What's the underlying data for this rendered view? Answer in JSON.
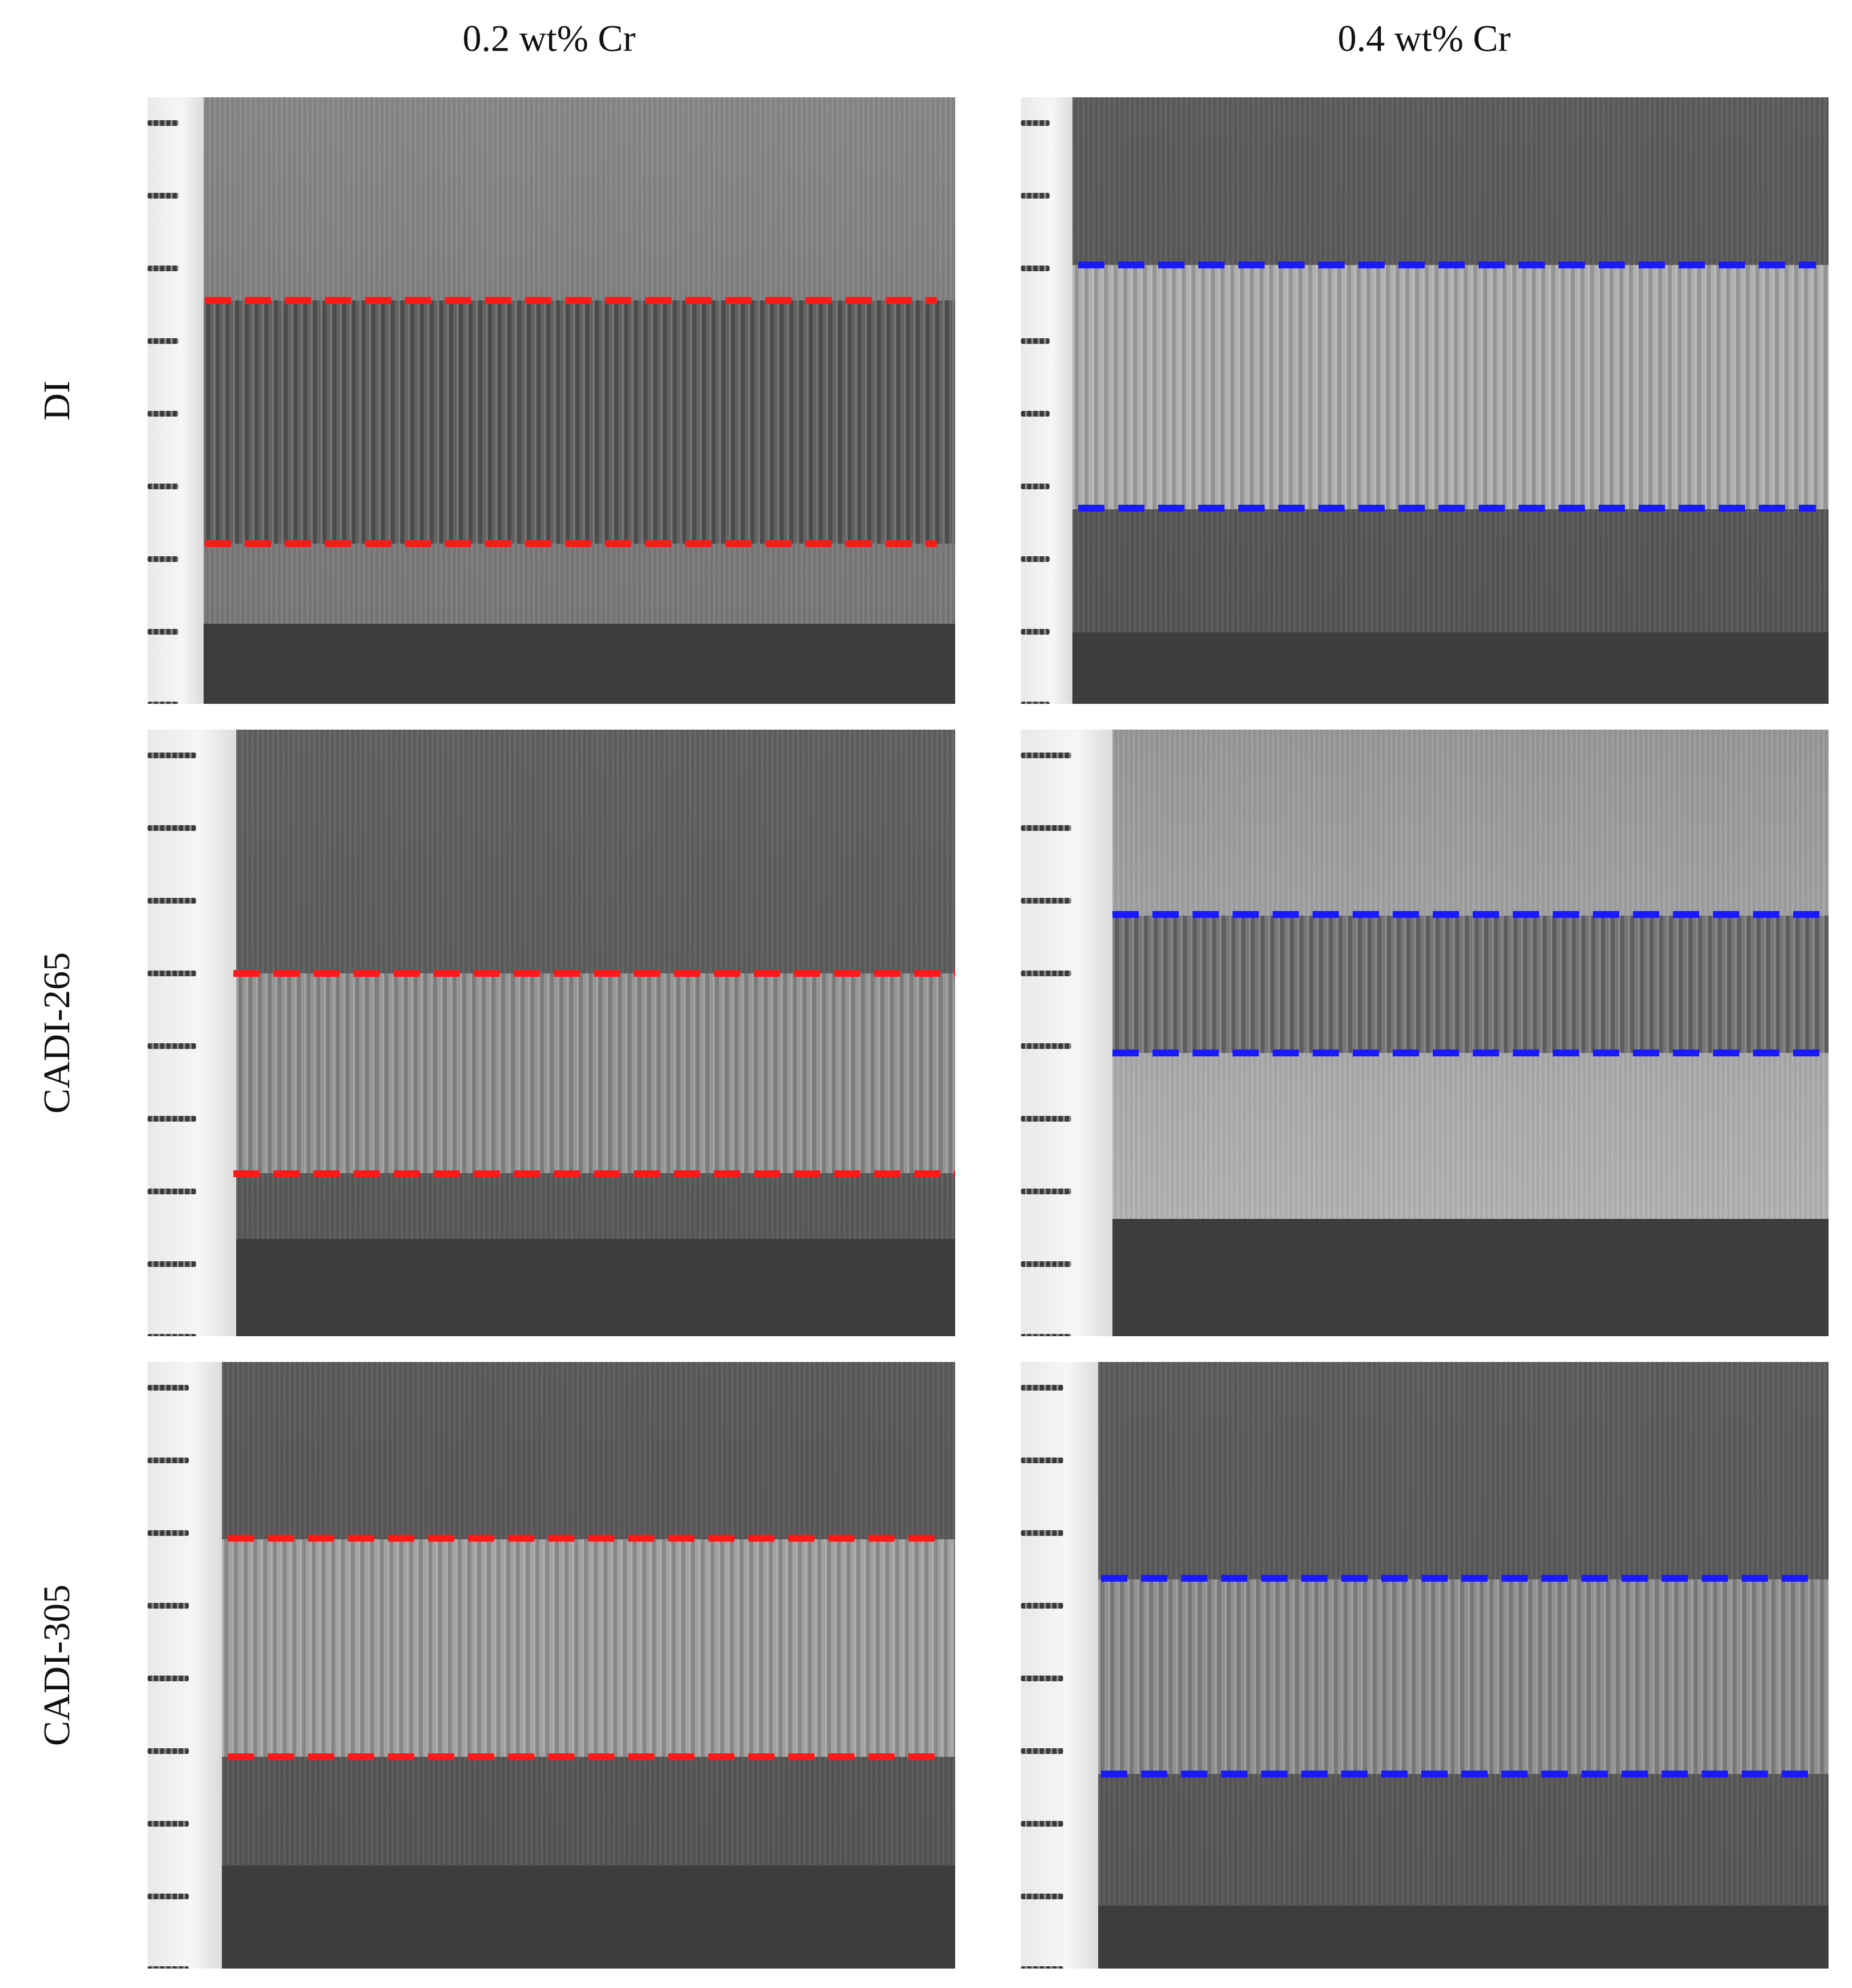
{
  "columns": [
    "0.2 wt% Cr",
    "0.4 wt% Cr"
  ],
  "rows": [
    "DI",
    "CADI-265",
    "CADI-305"
  ],
  "line_colors": {
    "0.2 wt% Cr": "#ff1a1a",
    "0.4 wt% Cr": "#1a1aff"
  },
  "panels": [
    {
      "row": "DI",
      "column": "0.2 wt% Cr",
      "line_color": "#ff1a1a"
    },
    {
      "row": "DI",
      "column": "0.4 wt% Cr",
      "line_color": "#1a1aff"
    },
    {
      "row": "CADI-265",
      "column": "0.2 wt% Cr",
      "line_color": "#ff1a1a"
    },
    {
      "row": "CADI-265",
      "column": "0.4 wt% Cr",
      "line_color": "#1a1aff"
    },
    {
      "row": "CADI-305",
      "column": "0.2 wt% Cr",
      "line_color": "#ff1a1a"
    },
    {
      "row": "CADI-305",
      "column": "0.4 wt% Cr",
      "line_color": "#1a1aff"
    }
  ]
}
